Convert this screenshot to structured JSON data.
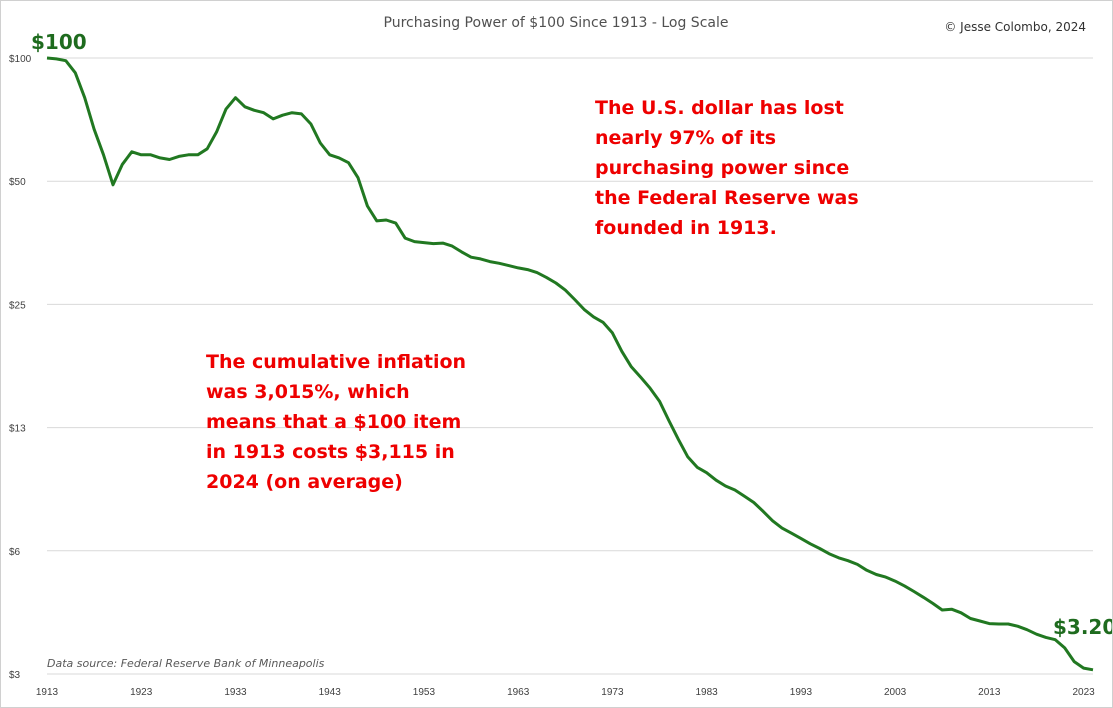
{
  "chart_data": {
    "type": "line",
    "title": "Purchasing Power of $100 Since 1913 - Log Scale",
    "copyright": "© Jesse Colombo, 2024",
    "source": "Data source: Federal Reserve Bank of Minneapolis",
    "y_scale": "log",
    "ylim": [
      3,
      100
    ],
    "xlim": [
      1913,
      2024
    ],
    "y_ticks": [
      {
        "value": 100,
        "label": "$100"
      },
      {
        "value": 50,
        "label": "$50"
      },
      {
        "value": 25,
        "label": "$25"
      },
      {
        "value": 12.5,
        "label": "$13"
      },
      {
        "value": 6.25,
        "label": "$6"
      },
      {
        "value": 3.125,
        "label": "$3"
      }
    ],
    "x_ticks": [
      1913,
      1923,
      1933,
      1943,
      1953,
      1963,
      1973,
      1983,
      1993,
      2003,
      2013,
      2023
    ],
    "grid": true,
    "line_color": "#217821",
    "start_label": "$100",
    "end_label": "$3.20",
    "annotations": [
      [
        "The U.S. dollar has lost",
        "nearly 97% of its",
        "purchasing power since",
        "the Federal Reserve was",
        "founded in 1913."
      ],
      [
        "The cumulative inflation",
        "was 3,015%, which",
        "means that a $100 item",
        "in 1913 costs $3,115 in",
        "2024 (on average)"
      ]
    ],
    "series": [
      {
        "x": [
          1913,
          1914,
          1915,
          1916,
          1917,
          1918,
          1919,
          1920,
          1921,
          1922,
          1923,
          1924,
          1925,
          1926,
          1927,
          1928,
          1929,
          1930,
          1931,
          1932,
          1933,
          1934,
          1935,
          1936,
          1937,
          1938,
          1939,
          1940,
          1941,
          1942,
          1943,
          1944,
          1945,
          1946,
          1947,
          1948,
          1949,
          1950,
          1951,
          1952,
          1953,
          1954,
          1955,
          1956,
          1957,
          1958,
          1959,
          1960,
          1961,
          1962,
          1963,
          1964,
          1965,
          1966,
          1967,
          1968,
          1969,
          1970,
          1971,
          1972,
          1973,
          1974,
          1975,
          1976,
          1977,
          1978,
          1979,
          1980,
          1981,
          1982,
          1983,
          1984,
          1985,
          1986,
          1987,
          1988,
          1989,
          1990,
          1991,
          1992,
          1993,
          1994,
          1995,
          1996,
          1997,
          1998,
          1999,
          2000,
          2001,
          2002,
          2003,
          2004,
          2005,
          2006,
          2007,
          2008,
          2009,
          2010,
          2011,
          2012,
          2013,
          2014,
          2015,
          2016,
          2017,
          2018,
          2019,
          2020,
          2021,
          2022,
          2023,
          2024
        ],
        "y": [
          100,
          99.5,
          98.5,
          92,
          80,
          67,
          58,
          49,
          55,
          59,
          58,
          58,
          57,
          56.5,
          57.5,
          58,
          58,
          60,
          66,
          75,
          80,
          76,
          74.5,
          73.5,
          71,
          72.5,
          73.5,
          73,
          69,
          62,
          58,
          57,
          55.5,
          51,
          43.5,
          40,
          40.2,
          39.5,
          36.3,
          35.6,
          35.4,
          35.2,
          35.3,
          34.7,
          33.6,
          32.6,
          32.3,
          31.8,
          31.5,
          31.1,
          30.7,
          30.4,
          29.9,
          29.1,
          28.2,
          27.1,
          25.7,
          24.3,
          23.3,
          22.6,
          21.3,
          19.2,
          17.6,
          16.6,
          15.6,
          14.5,
          13,
          11.7,
          10.6,
          10,
          9.7,
          9.3,
          9,
          8.8,
          8.5,
          8.2,
          7.8,
          7.4,
          7.1,
          6.9,
          6.7,
          6.5,
          6.33,
          6.15,
          6.01,
          5.91,
          5.79,
          5.6,
          5.47,
          5.39,
          5.27,
          5.13,
          4.97,
          4.81,
          4.65,
          4.48,
          4.5,
          4.41,
          4.27,
          4.21,
          4.15,
          4.14,
          4.14,
          4.09,
          4.01,
          3.91,
          3.84,
          3.79,
          3.62,
          3.35,
          3.23,
          3.2
        ]
      }
    ]
  }
}
